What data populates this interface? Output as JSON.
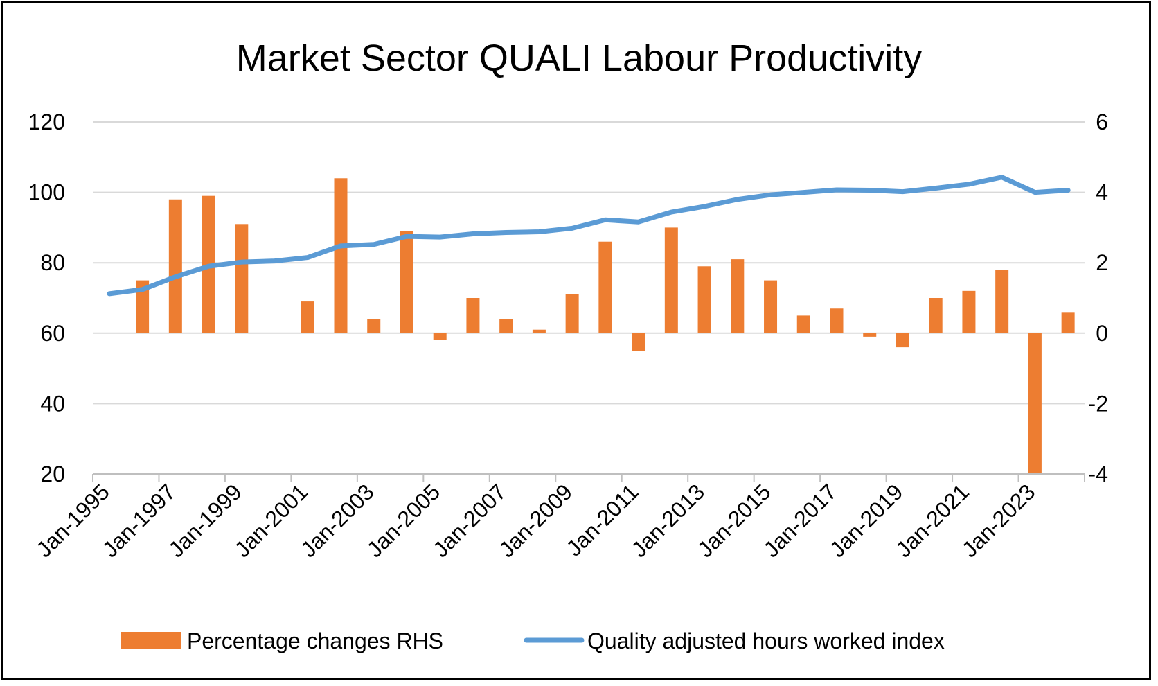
{
  "chart_data": {
    "type": "bar+line",
    "title": "Market Sector QUALI Labour Productivity",
    "x_tick_labels": [
      "Jan-1995",
      "Jan-1997",
      "Jan-1999",
      "Jan-2001",
      "Jan-2003",
      "Jan-2005",
      "Jan-2007",
      "Jan-2009",
      "Jan-2011",
      "Jan-2013",
      "Jan-2015",
      "Jan-2017",
      "Jan-2019",
      "Jan-2021",
      "Jan-2023"
    ],
    "y_left": {
      "min": 20,
      "max": 120,
      "ticks": [
        20,
        40,
        60,
        80,
        100,
        120
      ]
    },
    "y_right": {
      "min": -4,
      "max": 6,
      "ticks": [
        -4,
        -2,
        0,
        2,
        4,
        6
      ]
    },
    "grid": true,
    "legend_position": "bottom",
    "colors": {
      "bars": "#ED7D31",
      "line": "#5B9BD5",
      "grid": "#D9D9D9",
      "axis": "#BFBFBF"
    },
    "series": [
      {
        "name": "Percentage changes RHS",
        "kind": "bar",
        "axis": "right",
        "values": [
          null,
          1.5,
          3.8,
          3.9,
          3.1,
          null,
          0.9,
          4.4,
          0.4,
          2.9,
          -0.2,
          1.0,
          0.4,
          0.1,
          1.1,
          2.6,
          -0.5,
          3.0,
          1.9,
          2.1,
          1.5,
          0.5,
          0.7,
          -0.1,
          -0.4,
          1.0,
          1.2,
          1.8,
          -4.0,
          0.6
        ]
      },
      {
        "name": "Quality adjusted hours worked index",
        "kind": "line",
        "axis": "left",
        "values": [
          71.2,
          72.4,
          76.0,
          79.0,
          80.2,
          80.5,
          81.5,
          84.8,
          85.2,
          87.5,
          87.3,
          88.2,
          88.6,
          88.8,
          89.8,
          92.2,
          91.6,
          94.4,
          96.0,
          98.0,
          99.3,
          100.0,
          100.7,
          100.6,
          100.2,
          101.2,
          102.3,
          104.3,
          100.0,
          100.6
        ]
      }
    ],
    "legend": [
      {
        "label": "Percentage changes RHS",
        "kind": "bar"
      },
      {
        "label": "Quality adjusted hours worked index",
        "kind": "line"
      }
    ]
  }
}
